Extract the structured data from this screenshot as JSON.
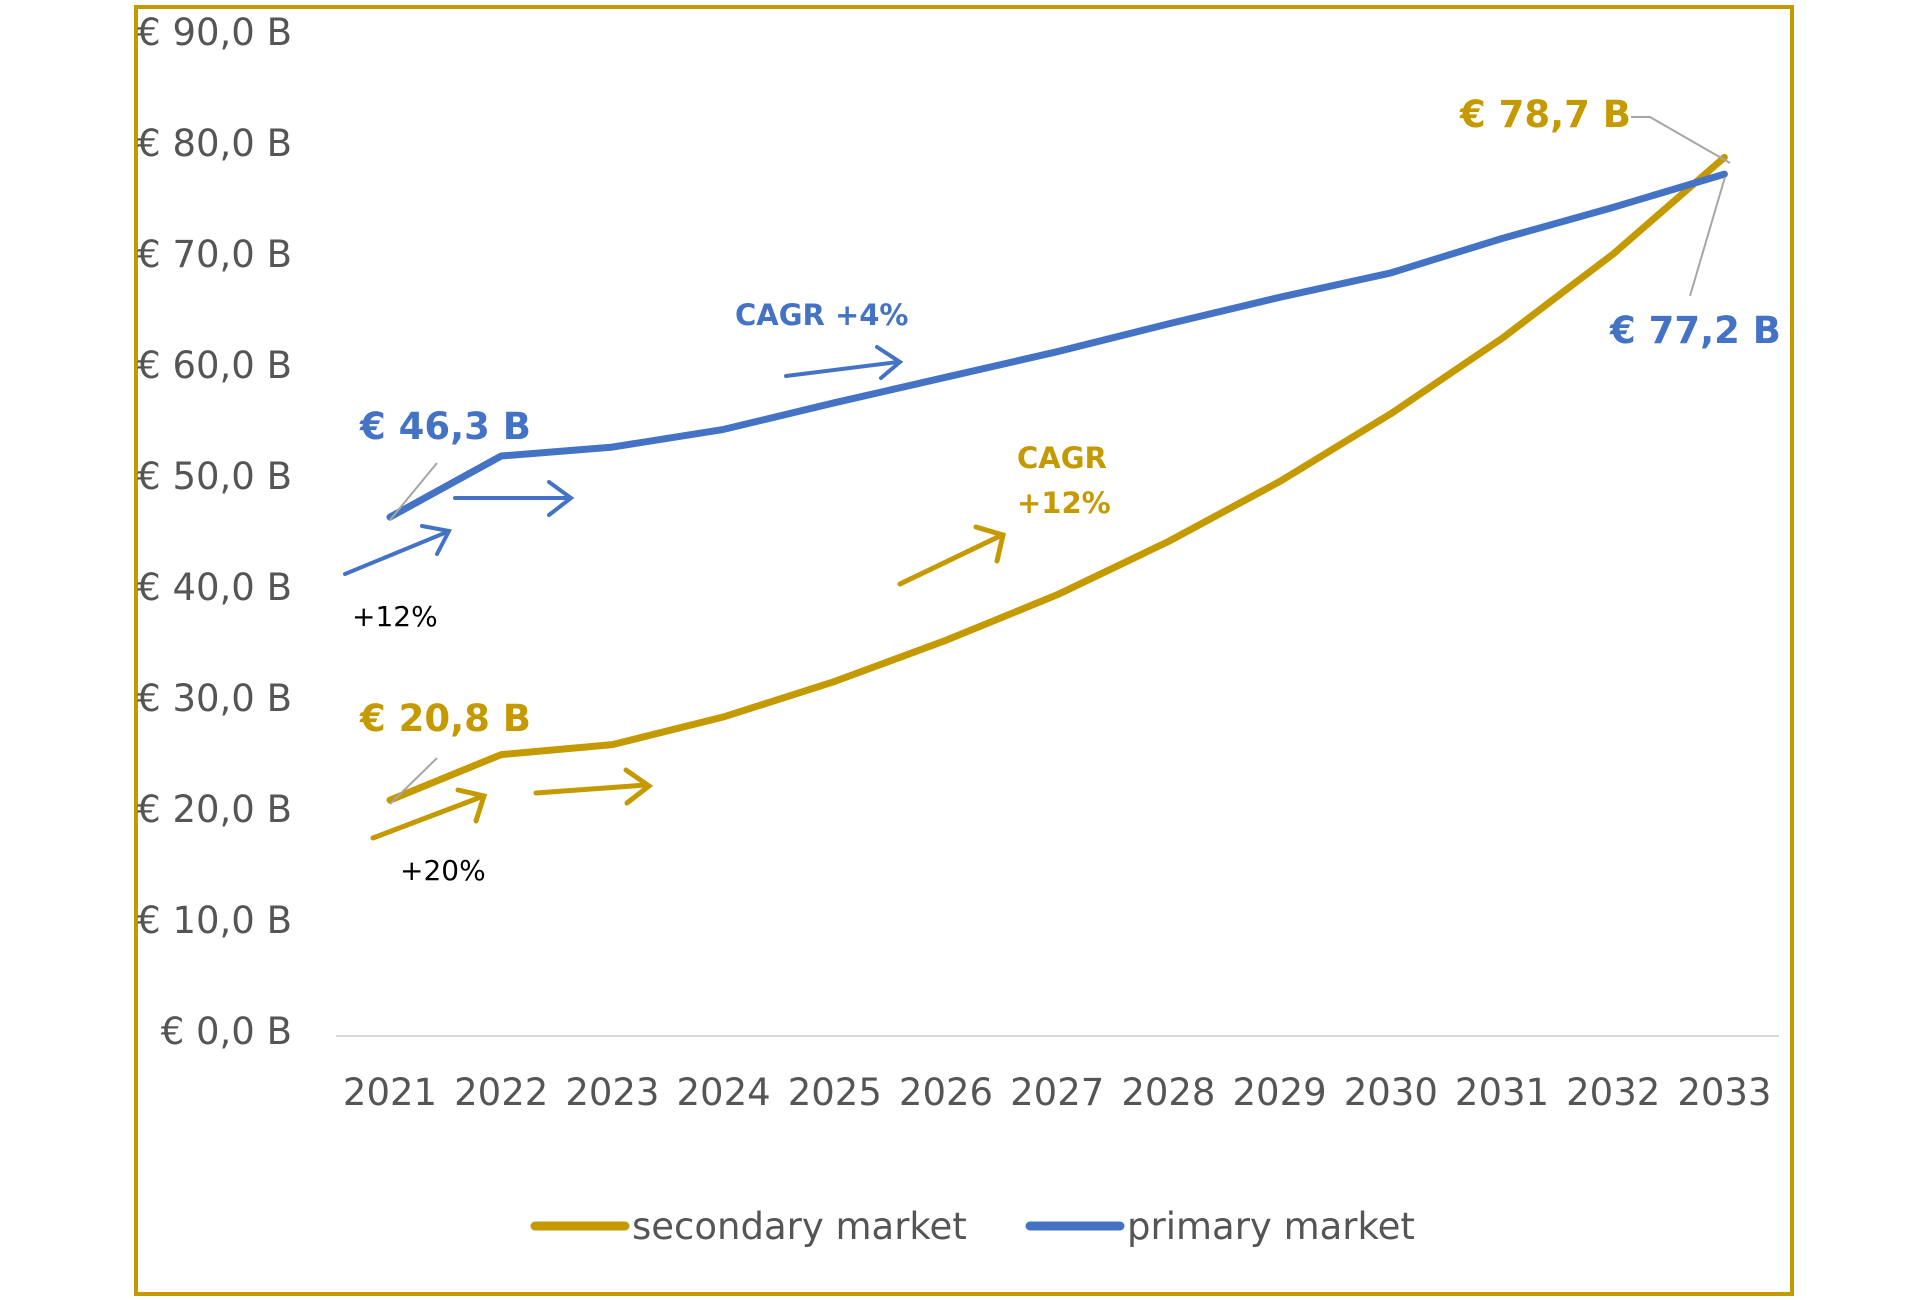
{
  "chart_data": {
    "type": "line",
    "title": "",
    "xlabel": "",
    "ylabel": "",
    "categories": [
      "2021",
      "2022",
      "2023",
      "2024",
      "2025",
      "2026",
      "2027",
      "2028",
      "2029",
      "2030",
      "2031",
      "2032",
      "2033"
    ],
    "ylim": [
      0,
      90
    ],
    "y_ticks": [
      0,
      10,
      20,
      30,
      40,
      50,
      60,
      70,
      80,
      90
    ],
    "y_tick_labels": [
      "€ 0,0 B",
      "€ 10,0 B",
      "€ 20,0 B",
      "€ 30,0 B",
      "€ 40,0 B",
      "€ 50,0 B",
      "€ 60,0 B",
      "€ 70,0 B",
      "€ 80,0 B",
      "€ 90,0 B"
    ],
    "grid": false,
    "legend_position": "bottom",
    "series": [
      {
        "name": "secondary market",
        "color": "#C49A00",
        "values": [
          20.8,
          24.9,
          25.8,
          28.3,
          31.5,
          35.2,
          39.3,
          44.1,
          49.5,
          55.6,
          62.4,
          70.0,
          78.7
        ]
      },
      {
        "name": "primary market",
        "color": "#4472C4",
        "values": [
          46.3,
          51.8,
          52.6,
          54.2,
          56.6,
          58.9,
          61.2,
          63.7,
          66.1,
          68.3,
          71.4,
          74.2,
          77.2
        ]
      }
    ],
    "annotations": {
      "primary_start": "€ 46,3 B",
      "primary_end": "€ 77,2 B",
      "secondary_start": "€ 20,8 B",
      "secondary_end": "€ 78,7 B",
      "primary_cagr": "CAGR +4%",
      "secondary_cagr_line1": "CAGR",
      "secondary_cagr_line2": "+12%",
      "primary_growth": "+12%",
      "secondary_growth": "+20%"
    }
  },
  "colors": {
    "frame": "#C49A00",
    "axis": "#d9d9d9",
    "tick_text": "#555555",
    "pointer": "#a6a6a6"
  }
}
